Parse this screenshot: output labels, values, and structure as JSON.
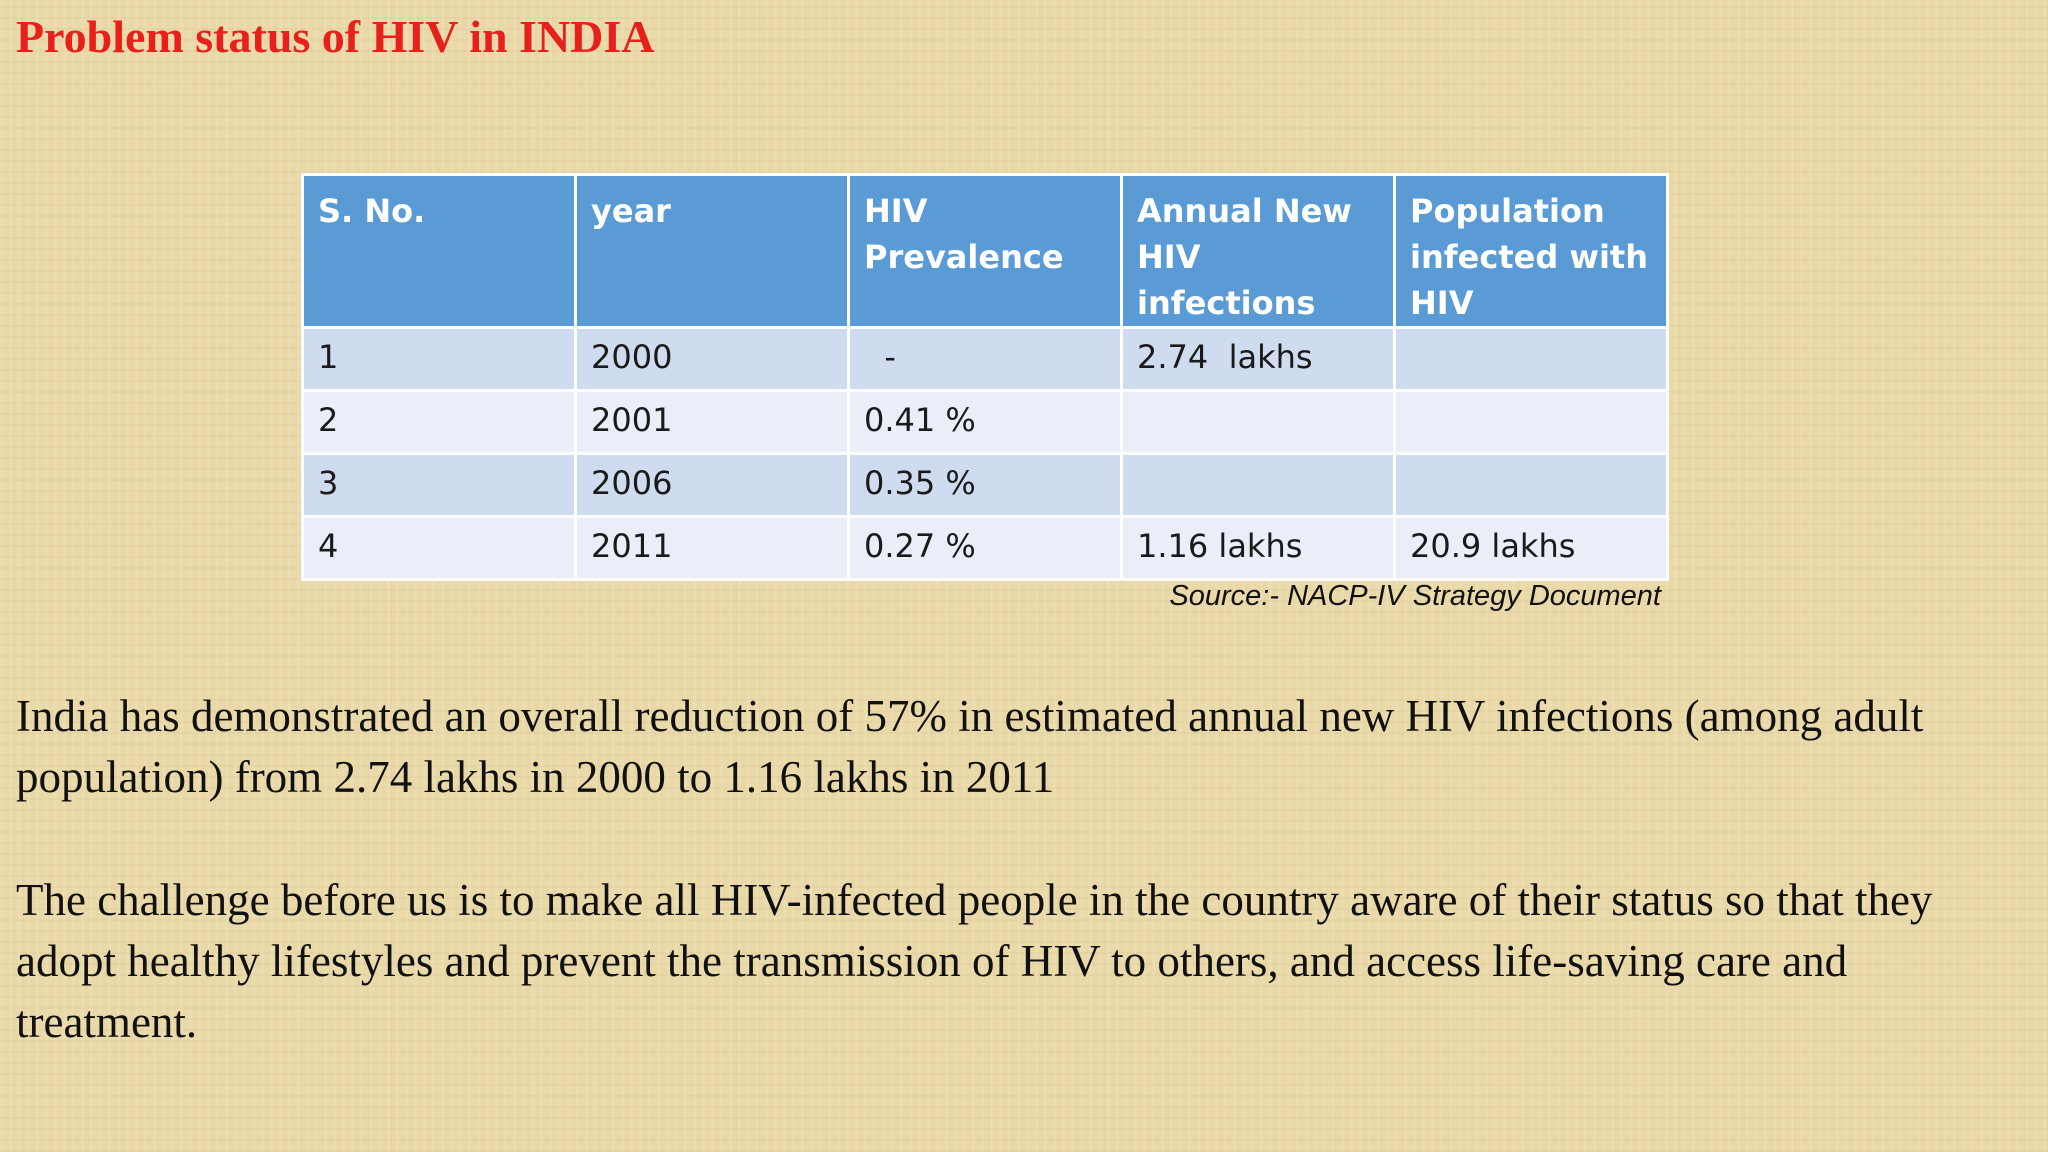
{
  "slide": {
    "title": "Problem status of HIV in INDIA",
    "table": {
      "headers": [
        "S. No.",
        "year",
        "HIV Prevalence",
        "Annual New HIV infections",
        "Population infected with HIV"
      ],
      "rows": [
        [
          "1",
          "2000",
          "  -",
          "2.74  lakhs",
          ""
        ],
        [
          "2",
          "2001",
          "0.41 %",
          "",
          ""
        ],
        [
          "3",
          "2006",
          "0.35 %",
          "",
          ""
        ],
        [
          "4",
          "2011",
          "0.27 %",
          "1.16 lakhs",
          "20.9 lakhs"
        ]
      ],
      "source": "Source:- NACP-IV Strategy Document"
    },
    "paragraph_1": "India has demonstrated an overall reduction of 57% in estimated annual new HIV infections (among adult population) from 2.74 lakhs in 2000 to 1.16 lakhs in 2011",
    "paragraph_2": "The challenge before us is to make all HIV-infected people in the country aware of their status so that they adopt healthy lifestyles and prevent the transmission of HIV to others, and access life-saving care and treatment."
  },
  "colors": {
    "title": "#e8201c",
    "header_bg": "#5b9bd5",
    "row_odd_bg": "#cfdcef",
    "row_even_bg": "#e9eef8",
    "background": "#ead9a8"
  }
}
